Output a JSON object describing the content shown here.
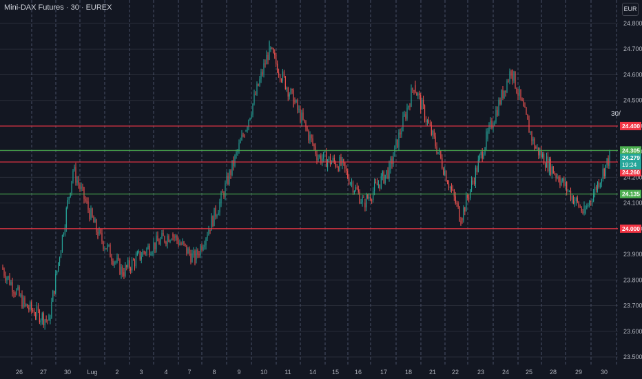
{
  "header": {
    "title": "Mini-DAX Futures · 30 · EUREX",
    "currency": "EUR",
    "side_label": "30/"
  },
  "colors": {
    "background": "#131722",
    "grid": "#2a2e39",
    "up": "#26a69a",
    "down": "#ef5350",
    "support_line": "#4caf50",
    "resistance_line": "#f23645",
    "axis_text": "#b2b5be"
  },
  "chart_data": {
    "type": "line",
    "title": "Mini-DAX Futures · 30 · EUREX",
    "ylim": [
      23500,
      24850
    ],
    "y_ticks": [
      "23.500",
      "23.600",
      "23.700",
      "23.800",
      "23.900",
      "24.000",
      "24.100",
      "24.200",
      "24.300",
      "24.400",
      "24.500",
      "24.600",
      "24.700",
      "24.800"
    ],
    "y_tick_values": [
      23500,
      23600,
      23700,
      23800,
      23900,
      24000,
      24100,
      24200,
      24300,
      24400,
      24500,
      24600,
      24700,
      24800
    ],
    "x_ticks": [
      "26",
      "27",
      "30",
      "Lug",
      "2",
      "3",
      "4",
      "7",
      "8",
      "9",
      "10",
      "11",
      "14",
      "15",
      "16",
      "17",
      "18",
      "21",
      "22",
      "23",
      "24",
      "25",
      "28",
      "29",
      "30"
    ],
    "series": [
      {
        "type": "candlestick",
        "x": [
          "26",
          "27",
          "30",
          "Lug",
          "2",
          "3",
          "4",
          "7",
          "8",
          "9",
          "10",
          "11",
          "14",
          "15",
          "16",
          "17",
          "18",
          "21",
          "22",
          "23",
          "24",
          "25",
          "28",
          "29",
          "30"
        ],
        "values": [
          23700,
          23640,
          24230,
          23980,
          23830,
          23920,
          23980,
          23880,
          24100,
          24380,
          24700,
          24500,
          24280,
          24250,
          24100,
          24230,
          24560,
          24300,
          24040,
          24350,
          24620,
          24320,
          24200,
          24060,
          24279
        ]
      }
    ],
    "horizontal_lines": [
      {
        "value": 24400,
        "label": "24.400",
        "color": "#f23645"
      },
      {
        "value": 24305,
        "label": "24.305",
        "color": "#4caf50"
      },
      {
        "value": 24260,
        "label": "24.260",
        "color": "#f23645"
      },
      {
        "value": 24135,
        "label": "24.135",
        "color": "#4caf50"
      },
      {
        "value": 24000,
        "label": "24.000",
        "color": "#f23645"
      }
    ],
    "last_price": {
      "value": 24279,
      "label": "24.279",
      "countdown": "19:24"
    },
    "grid": true
  }
}
